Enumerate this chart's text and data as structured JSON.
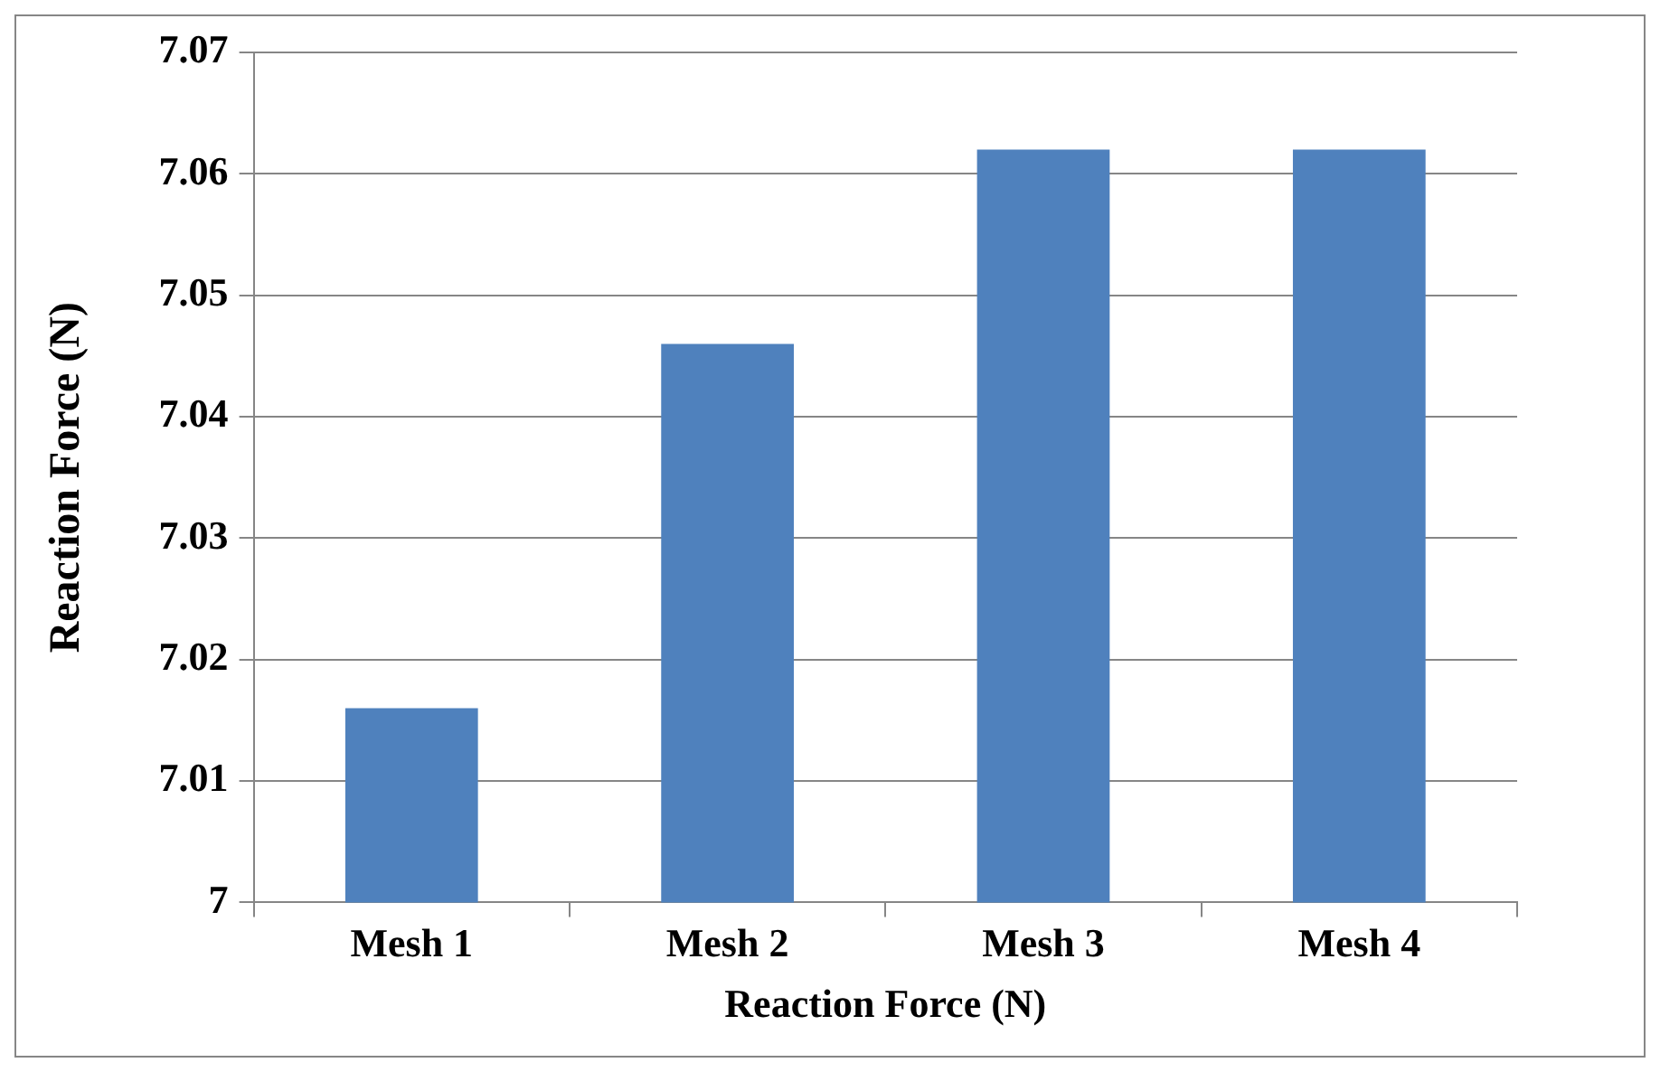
{
  "chart_data": {
    "type": "bar",
    "xlabel": "Reaction Force (N)",
    "ylabel": "Reaction Force (N)",
    "categories": [
      "Mesh 1",
      "Mesh 2",
      "Mesh 3",
      "Mesh 4"
    ],
    "values": [
      7.016,
      7.046,
      7.062,
      7.062
    ],
    "color": "#4f81bd",
    "ylim": [
      7,
      7.07
    ],
    "yticks": [
      7,
      7.01,
      7.02,
      7.03,
      7.04,
      7.05,
      7.06,
      7.07
    ],
    "grid": "y"
  }
}
